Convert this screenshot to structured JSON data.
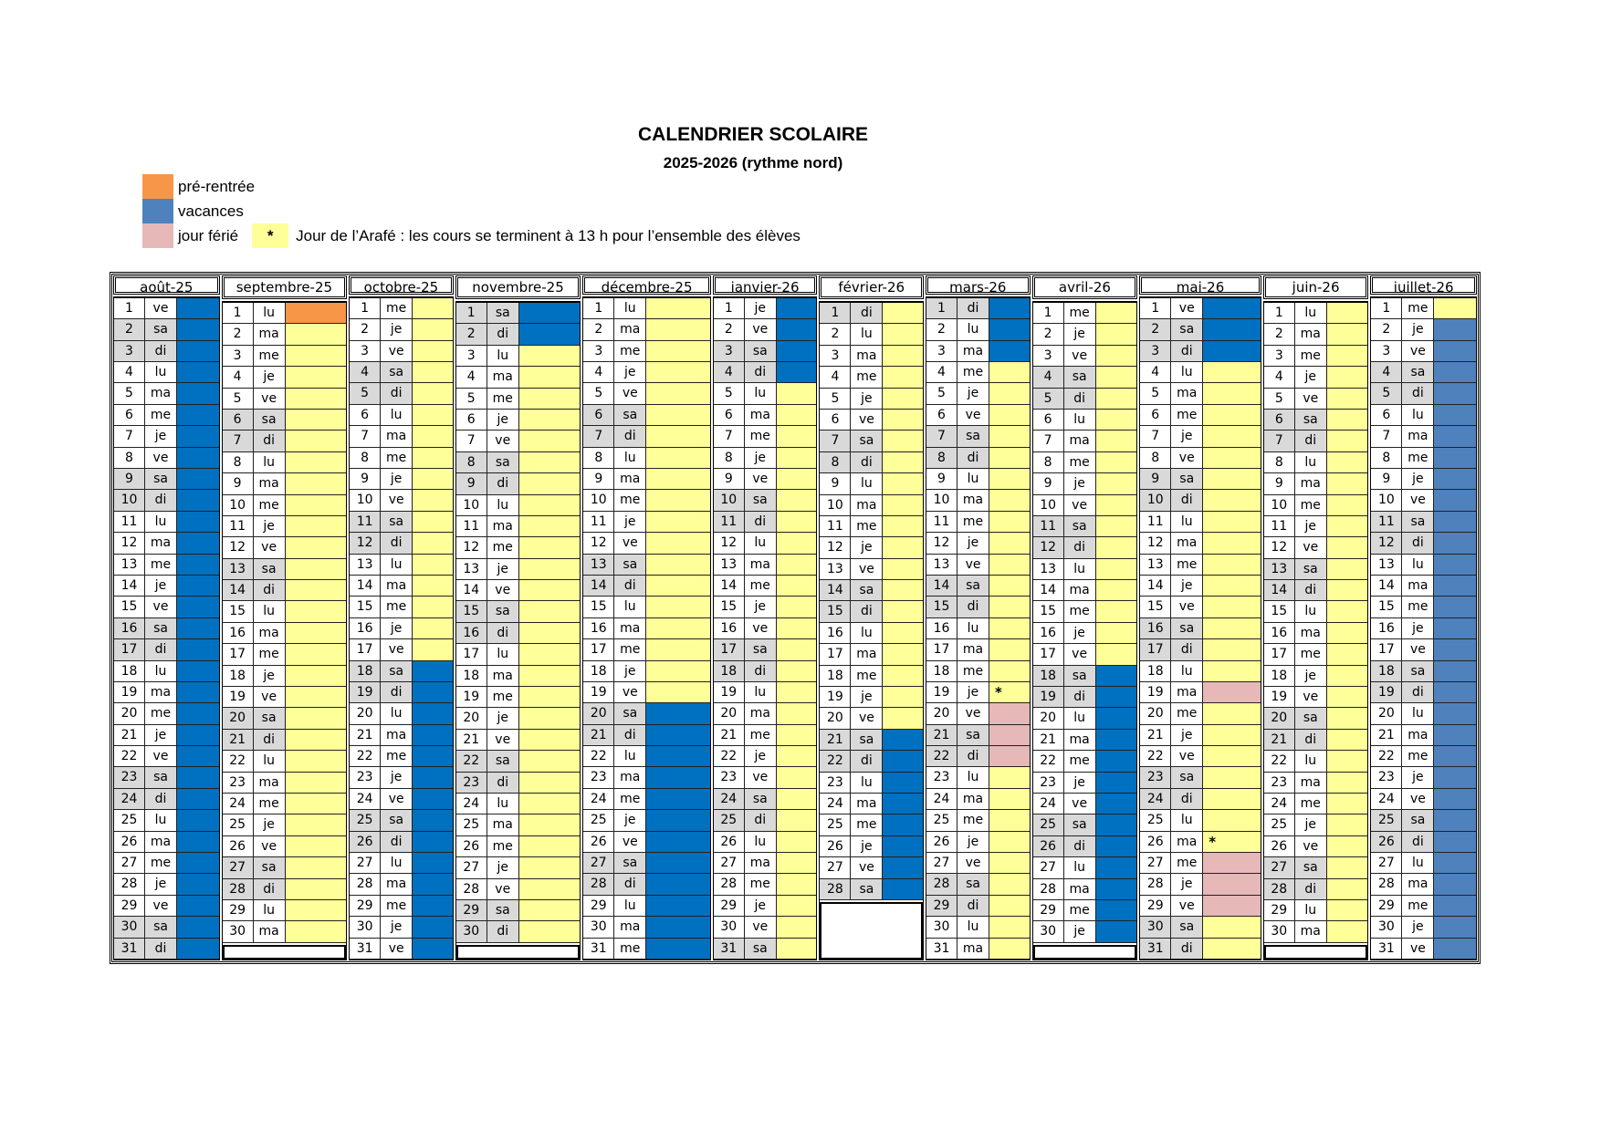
{
  "title": "CALENDRIER SCOLAIRE",
  "subtitle": "2025-2026 (rythme nord)",
  "colors": {
    "pre_rentree": "#f79646",
    "vacances": "#0070c0",
    "vacances_legend": "#4f81bd",
    "ferie": "#e6b8b8",
    "cours": "#ffff99",
    "weekend": "#d9d9d9"
  },
  "legend": {
    "pre_rentree": "pré-rentrée",
    "vacances": "vacances",
    "ferie": "jour férié",
    "arafe_symbol": "*",
    "arafe": "Jour de l’Arafé : les cours se terminent à 13 h pour l’ensemble des élèves"
  },
  "months": [
    {
      "label": "août-25",
      "weekdays": [
        "ve",
        "sa",
        "di",
        "lu",
        "ma",
        "me",
        "je",
        "ve",
        "sa",
        "di",
        "lu",
        "ma",
        "me",
        "je",
        "ve",
        "sa",
        "di",
        "lu",
        "ma",
        "me",
        "je",
        "ve",
        "sa",
        "di",
        "lu",
        "ma",
        "me",
        "je",
        "ve",
        "sa",
        "di"
      ],
      "periods": [
        {
          "from": 1,
          "to": 31,
          "type": "vacances"
        }
      ]
    },
    {
      "label": "septembre-25",
      "weekdays": [
        "lu",
        "ma",
        "me",
        "je",
        "ve",
        "sa",
        "di",
        "lu",
        "ma",
        "me",
        "je",
        "ve",
        "sa",
        "di",
        "lu",
        "ma",
        "me",
        "je",
        "ve",
        "sa",
        "di",
        "lu",
        "ma",
        "me",
        "je",
        "ve",
        "sa",
        "di",
        "lu",
        "ma"
      ],
      "periods": [
        {
          "from": 1,
          "to": 1,
          "type": "pre_rentree"
        }
      ]
    },
    {
      "label": "octobre-25",
      "weekdays": [
        "me",
        "je",
        "ve",
        "sa",
        "di",
        "lu",
        "ma",
        "me",
        "je",
        "ve",
        "sa",
        "di",
        "lu",
        "ma",
        "me",
        "je",
        "ve",
        "sa",
        "di",
        "lu",
        "ma",
        "me",
        "je",
        "ve",
        "sa",
        "di",
        "lu",
        "ma",
        "me",
        "je",
        "ve"
      ],
      "periods": [
        {
          "from": 18,
          "to": 31,
          "type": "vacances"
        }
      ]
    },
    {
      "label": "novembre-25",
      "weekdays": [
        "sa",
        "di",
        "lu",
        "ma",
        "me",
        "je",
        "ve",
        "sa",
        "di",
        "lu",
        "ma",
        "me",
        "je",
        "ve",
        "sa",
        "di",
        "lu",
        "ma",
        "me",
        "je",
        "ve",
        "sa",
        "di",
        "lu",
        "ma",
        "me",
        "je",
        "ve",
        "sa",
        "di"
      ],
      "periods": [
        {
          "from": 1,
          "to": 2,
          "type": "vacances"
        }
      ]
    },
    {
      "label": "décembre-25",
      "weekdays": [
        "lu",
        "ma",
        "me",
        "je",
        "ve",
        "sa",
        "di",
        "lu",
        "ma",
        "me",
        "je",
        "ve",
        "sa",
        "di",
        "lu",
        "ma",
        "me",
        "je",
        "ve",
        "sa",
        "di",
        "lu",
        "ma",
        "me",
        "je",
        "ve",
        "sa",
        "di",
        "lu",
        "ma",
        "me"
      ],
      "periods": [
        {
          "from": 20,
          "to": 31,
          "type": "vacances"
        }
      ]
    },
    {
      "label": "janvier-26",
      "weekdays": [
        "je",
        "ve",
        "sa",
        "di",
        "lu",
        "ma",
        "me",
        "je",
        "ve",
        "sa",
        "di",
        "lu",
        "ma",
        "me",
        "je",
        "ve",
        "sa",
        "di",
        "lu",
        "ma",
        "me",
        "je",
        "ve",
        "sa",
        "di",
        "lu",
        "ma",
        "me",
        "je",
        "ve",
        "sa"
      ],
      "periods": [
        {
          "from": 1,
          "to": 4,
          "type": "vacances"
        }
      ]
    },
    {
      "label": "février-26",
      "weekdays": [
        "di",
        "lu",
        "ma",
        "me",
        "je",
        "ve",
        "sa",
        "di",
        "lu",
        "ma",
        "me",
        "je",
        "ve",
        "sa",
        "di",
        "lu",
        "ma",
        "me",
        "je",
        "ve",
        "sa",
        "di",
        "lu",
        "ma",
        "me",
        "je",
        "ve",
        "sa"
      ],
      "periods": [
        {
          "from": 21,
          "to": 28,
          "type": "vacances"
        }
      ]
    },
    {
      "label": "mars-26",
      "weekdays": [
        "di",
        "lu",
        "ma",
        "me",
        "je",
        "ve",
        "sa",
        "di",
        "lu",
        "ma",
        "me",
        "je",
        "ve",
        "sa",
        "di",
        "lu",
        "ma",
        "me",
        "je",
        "ve",
        "sa",
        "di",
        "lu",
        "ma",
        "me",
        "je",
        "ve",
        "sa",
        "di",
        "lu",
        "ma"
      ],
      "periods": [
        {
          "from": 1,
          "to": 3,
          "type": "vacances"
        },
        {
          "from": 19,
          "to": 19,
          "type": "arafe"
        },
        {
          "from": 20,
          "to": 22,
          "type": "ferie"
        }
      ]
    },
    {
      "label": "avril-26",
      "weekdays": [
        "me",
        "je",
        "ve",
        "sa",
        "di",
        "lu",
        "ma",
        "me",
        "je",
        "ve",
        "sa",
        "di",
        "lu",
        "ma",
        "me",
        "je",
        "ve",
        "sa",
        "di",
        "lu",
        "ma",
        "me",
        "je",
        "ve",
        "sa",
        "di",
        "lu",
        "ma",
        "me",
        "je"
      ],
      "periods": [
        {
          "from": 18,
          "to": 30,
          "type": "vacances"
        }
      ]
    },
    {
      "label": "mai-26",
      "weekdays": [
        "ve",
        "sa",
        "di",
        "lu",
        "ma",
        "me",
        "je",
        "ve",
        "sa",
        "di",
        "lu",
        "ma",
        "me",
        "je",
        "ve",
        "sa",
        "di",
        "lu",
        "ma",
        "me",
        "je",
        "ve",
        "sa",
        "di",
        "lu",
        "ma",
        "me",
        "je",
        "ve",
        "sa",
        "di"
      ],
      "periods": [
        {
          "from": 1,
          "to": 3,
          "type": "vacances"
        },
        {
          "from": 19,
          "to": 19,
          "type": "ferie"
        },
        {
          "from": 26,
          "to": 26,
          "type": "arafe"
        },
        {
          "from": 27,
          "to": 29,
          "type": "ferie"
        }
      ]
    },
    {
      "label": "juin-26",
      "weekdays": [
        "lu",
        "ma",
        "me",
        "je",
        "ve",
        "sa",
        "di",
        "lu",
        "ma",
        "me",
        "je",
        "ve",
        "sa",
        "di",
        "lu",
        "ma",
        "me",
        "je",
        "ve",
        "sa",
        "di",
        "lu",
        "ma",
        "me",
        "je",
        "ve",
        "sa",
        "di",
        "lu",
        "ma"
      ],
      "periods": []
    },
    {
      "label": "juillet-26",
      "weekdays": [
        "me",
        "je",
        "ve",
        "sa",
        "di",
        "lu",
        "ma",
        "me",
        "je",
        "ve",
        "sa",
        "di",
        "lu",
        "ma",
        "me",
        "je",
        "ve",
        "sa",
        "di",
        "lu",
        "ma",
        "me",
        "je",
        "ve",
        "sa",
        "di",
        "lu",
        "ma",
        "me",
        "je",
        "ve"
      ],
      "periods": [
        {
          "from": 2,
          "to": 31,
          "type": "vacances_legend"
        }
      ]
    }
  ]
}
